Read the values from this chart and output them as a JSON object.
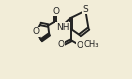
{
  "bg_color": "#f2edd8",
  "bond_color": "#222222",
  "atom_bg": "#f2edd8",
  "bond_width": 1.4,
  "font_size": 6.5,
  "xlim": [
    0.0,
    1.0
  ],
  "ylim": [
    0.0,
    1.0
  ],
  "figsize": [
    1.32,
    0.79
  ]
}
